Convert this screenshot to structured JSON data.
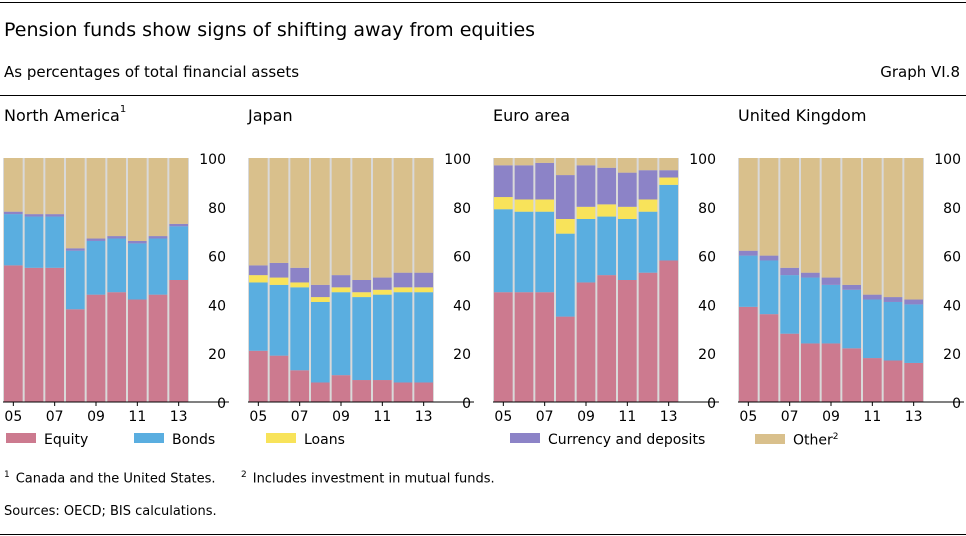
{
  "header": {
    "title": "Pension funds show signs of shifting away from equities",
    "subtitle": "As percentages of total financial assets",
    "graph_id": "Graph VI.8"
  },
  "colors": {
    "Equity": "#cc7a8f",
    "Bonds": "#5aaee0",
    "Loans": "#f8e35a",
    "Currency and deposits": "#8c83c7",
    "Other": "#d9c08c",
    "plot_bg": "#d9d9d9"
  },
  "legend": [
    {
      "key": "Equity",
      "label": "Equity",
      "sup": ""
    },
    {
      "key": "Bonds",
      "label": "Bonds",
      "sup": ""
    },
    {
      "key": "Loans",
      "label": "Loans",
      "sup": ""
    },
    {
      "key": "Currency and deposits",
      "label": "Currency and deposits",
      "sup": ""
    },
    {
      "key": "Other",
      "label": "Other",
      "sup": "2"
    }
  ],
  "footnotes": {
    "fn1_mark": "1",
    "fn1_text": "Canada and the United States.",
    "fn2_mark": "2",
    "fn2_text": "Includes investment in mutual funds.",
    "sources": "Sources: OECD; BIS calculations."
  },
  "chart_data": [
    {
      "type": "bar",
      "stacked": true,
      "title": "North America",
      "title_sup": "1",
      "categories": [
        "2005",
        "2006",
        "2007",
        "2008",
        "2009",
        "2010",
        "2011",
        "2012",
        "2013"
      ],
      "x_tick_labels": [
        "05",
        "07",
        "09",
        "11",
        "13"
      ],
      "y_ticks": [
        0,
        20,
        40,
        60,
        80,
        100
      ],
      "ylim": [
        0,
        100
      ],
      "series": [
        {
          "name": "Equity",
          "values": [
            56,
            55,
            55,
            38,
            44,
            45,
            42,
            44,
            50
          ]
        },
        {
          "name": "Bonds",
          "values": [
            21,
            21,
            21,
            24,
            22,
            22,
            23,
            23,
            22
          ]
        },
        {
          "name": "Loans",
          "values": [
            0,
            0,
            0,
            0,
            0,
            0,
            0,
            0,
            0
          ]
        },
        {
          "name": "Currency and deposits",
          "values": [
            1,
            1,
            1,
            1,
            1,
            1,
            1,
            1,
            1
          ]
        },
        {
          "name": "Other",
          "values": [
            22,
            23,
            23,
            37,
            33,
            32,
            34,
            32,
            27
          ]
        }
      ]
    },
    {
      "type": "bar",
      "stacked": true,
      "title": "Japan",
      "title_sup": "",
      "categories": [
        "2005",
        "2006",
        "2007",
        "2008",
        "2009",
        "2010",
        "2011",
        "2012",
        "2013"
      ],
      "x_tick_labels": [
        "05",
        "07",
        "09",
        "11",
        "13"
      ],
      "y_ticks": [
        0,
        20,
        40,
        60,
        80,
        100
      ],
      "ylim": [
        0,
        100
      ],
      "series": [
        {
          "name": "Equity",
          "values": [
            21,
            19,
            13,
            8,
            11,
            9,
            9,
            8,
            8
          ]
        },
        {
          "name": "Bonds",
          "values": [
            28,
            29,
            34,
            33,
            34,
            34,
            35,
            37,
            37
          ]
        },
        {
          "name": "Loans",
          "values": [
            3,
            3,
            2,
            2,
            2,
            2,
            2,
            2,
            2
          ]
        },
        {
          "name": "Currency and deposits",
          "values": [
            4,
            6,
            6,
            5,
            5,
            5,
            5,
            6,
            6
          ]
        },
        {
          "name": "Other",
          "values": [
            44,
            43,
            45,
            52,
            48,
            50,
            49,
            47,
            47
          ]
        }
      ]
    },
    {
      "type": "bar",
      "stacked": true,
      "title": "Euro area",
      "title_sup": "",
      "categories": [
        "2005",
        "2006",
        "2007",
        "2008",
        "2009",
        "2010",
        "2011",
        "2012",
        "2013"
      ],
      "x_tick_labels": [
        "05",
        "07",
        "09",
        "11",
        "13"
      ],
      "y_ticks": [
        0,
        20,
        40,
        60,
        80,
        100
      ],
      "ylim": [
        0,
        100
      ],
      "series": [
        {
          "name": "Equity",
          "values": [
            45,
            45,
            45,
            35,
            49,
            52,
            50,
            53,
            58
          ]
        },
        {
          "name": "Bonds",
          "values": [
            34,
            33,
            33,
            34,
            26,
            24,
            25,
            25,
            31
          ]
        },
        {
          "name": "Loans",
          "values": [
            5,
            5,
            5,
            6,
            5,
            5,
            5,
            5,
            3
          ]
        },
        {
          "name": "Currency and deposits",
          "values": [
            13,
            14,
            15,
            18,
            17,
            15,
            14,
            12,
            3
          ]
        },
        {
          "name": "Other",
          "values": [
            3,
            3,
            2,
            7,
            3,
            4,
            6,
            5,
            5
          ]
        }
      ]
    },
    {
      "type": "bar",
      "stacked": true,
      "title": "United Kingdom",
      "title_sup": "",
      "categories": [
        "2005",
        "2006",
        "2007",
        "2008",
        "2009",
        "2010",
        "2011",
        "2012",
        "2013"
      ],
      "x_tick_labels": [
        "05",
        "07",
        "09",
        "11",
        "13"
      ],
      "y_ticks": [
        0,
        20,
        40,
        60,
        80,
        100
      ],
      "ylim": [
        0,
        100
      ],
      "series": [
        {
          "name": "Equity",
          "values": [
            39,
            36,
            28,
            24,
            24,
            22,
            18,
            17,
            16
          ]
        },
        {
          "name": "Bonds",
          "values": [
            21,
            22,
            24,
            27,
            24,
            24,
            24,
            24,
            24
          ]
        },
        {
          "name": "Loans",
          "values": [
            0,
            0,
            0,
            0,
            0,
            0,
            0,
            0,
            0
          ]
        },
        {
          "name": "Currency and deposits",
          "values": [
            2,
            2,
            3,
            2,
            3,
            2,
            2,
            2,
            2
          ]
        },
        {
          "name": "Other",
          "values": [
            38,
            40,
            45,
            47,
            49,
            52,
            56,
            57,
            58
          ]
        }
      ]
    }
  ]
}
